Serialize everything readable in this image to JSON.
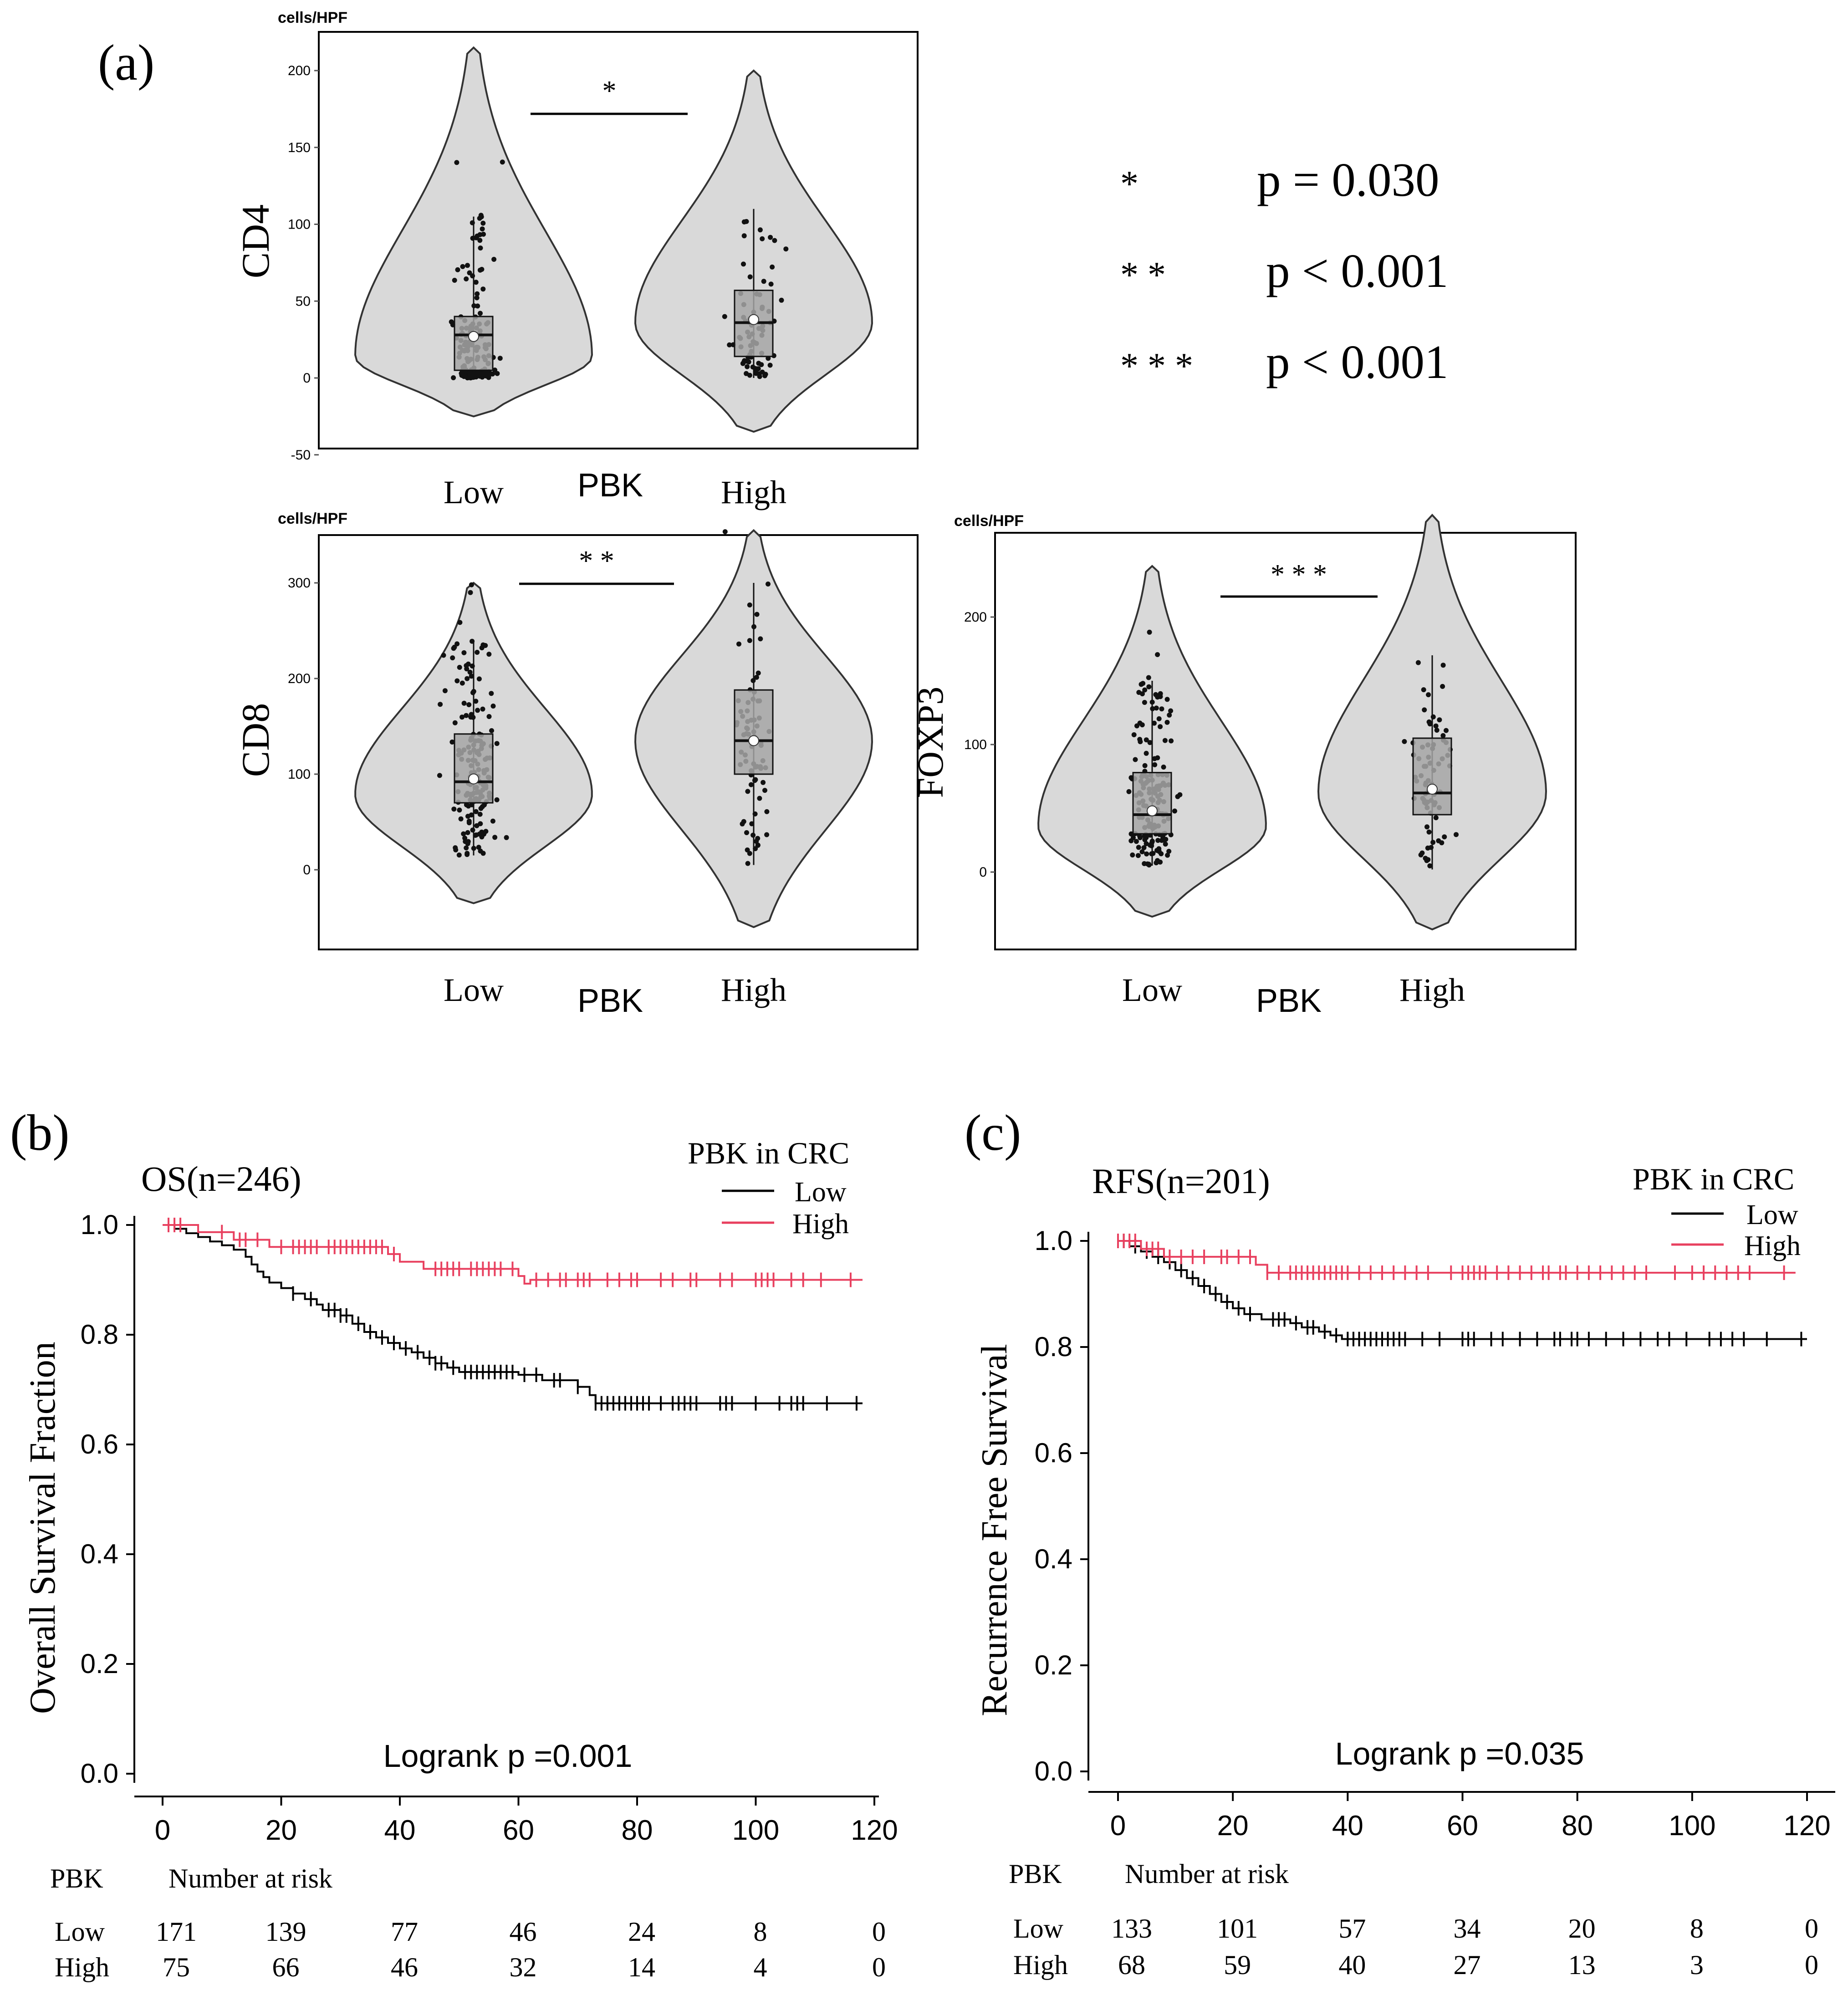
{
  "panel_labels": {
    "a": "(a)",
    "b": "(b)",
    "c": "(c)"
  },
  "legend_p": [
    {
      "stars": "*",
      "text": "p = 0.030"
    },
    {
      "stars": "* *",
      "text": "p < 0.001"
    },
    {
      "stars": "* * *",
      "text": "p < 0.001"
    }
  ],
  "colors": {
    "low": "#000000",
    "high": "#e8405f",
    "violin_fill": "#d9d9d9",
    "box_fill": "#a6a6a6"
  },
  "chart_data": [
    {
      "type": "violin",
      "id": "cd4",
      "ylabel": "CD4",
      "unit": "cells/HPF",
      "xlabel": "PBK",
      "categories": [
        "Low",
        "High"
      ],
      "yticks": [
        -50,
        0,
        50,
        100,
        150,
        200
      ],
      "ylim": [
        -50,
        220
      ],
      "significance": "*",
      "groups": [
        {
          "name": "Low",
          "min": 0,
          "q1": 5,
          "median": 28,
          "q3": 40,
          "max": 105,
          "mean": 27,
          "n": 171,
          "violin_range": [
            -25,
            215
          ]
        },
        {
          "name": "High",
          "min": 0,
          "q1": 14,
          "median": 36,
          "q3": 57,
          "max": 110,
          "mean": 38,
          "n": 75,
          "violin_range": [
            -35,
            200
          ]
        }
      ]
    },
    {
      "type": "violin",
      "id": "cd8",
      "ylabel": "CD8",
      "unit": "cells/HPF",
      "xlabel": "PBK",
      "categories": [
        "Low",
        "High"
      ],
      "yticks": [
        0,
        100,
        200,
        300
      ],
      "ylim": [
        -70,
        345
      ],
      "significance": "* *",
      "groups": [
        {
          "name": "Low",
          "min": 15,
          "q1": 70,
          "median": 92,
          "q3": 142,
          "max": 240,
          "mean": 95,
          "n": 171,
          "violin_range": [
            -35,
            300
          ]
        },
        {
          "name": "High",
          "min": 5,
          "q1": 100,
          "median": 135,
          "q3": 188,
          "max": 300,
          "mean": 135,
          "n": 75,
          "violin_range": [
            -60,
            355
          ]
        }
      ]
    },
    {
      "type": "violin",
      "id": "foxp3",
      "ylabel": "FOXP3",
      "unit": "cells/HPF",
      "xlabel": "PBK",
      "categories": [
        "Low",
        "High"
      ],
      "yticks": [
        0,
        100,
        200
      ],
      "ylim": [
        -60,
        255
      ],
      "significance": "* * *",
      "groups": [
        {
          "name": "Low",
          "min": 5,
          "q1": 30,
          "median": 45,
          "q3": 78,
          "max": 150,
          "mean": 48,
          "n": 171,
          "violin_range": [
            -35,
            240
          ]
        },
        {
          "name": "High",
          "min": 2,
          "q1": 45,
          "median": 62,
          "q3": 105,
          "max": 170,
          "mean": 65,
          "n": 75,
          "violin_range": [
            -45,
            280
          ]
        }
      ]
    },
    {
      "type": "line",
      "id": "os",
      "title": "OS(n=246)",
      "ylabel": "Overall Survival Fraction",
      "xlabel": "",
      "xlim": [
        -5,
        120
      ],
      "ylim": [
        0,
        1.0
      ],
      "xticks": [
        0,
        20,
        40,
        60,
        80,
        100,
        120
      ],
      "yticks": [
        0.0,
        0.2,
        0.4,
        0.6,
        0.8,
        1.0
      ],
      "legend_title": "PBK in CRC",
      "logrank": "Logrank p =0.001",
      "risk_table": {
        "group_header": "PBK",
        "header": "Number at risk",
        "rows": [
          {
            "name": "Low",
            "values": [
              171,
              139,
              77,
              46,
              24,
              8,
              0
            ]
          },
          {
            "name": "High",
            "values": [
              75,
              66,
              46,
              32,
              14,
              4,
              0
            ]
          }
        ]
      },
      "series": [
        {
          "name": "Low",
          "color": "#000000",
          "steps": [
            [
              0,
              1.0
            ],
            [
              2,
              0.993
            ],
            [
              4,
              0.985
            ],
            [
              6,
              0.978
            ],
            [
              8,
              0.97
            ],
            [
              10,
              0.963
            ],
            [
              12,
              0.955
            ],
            [
              14,
              0.942
            ],
            [
              15,
              0.928
            ],
            [
              16,
              0.915
            ],
            [
              17,
              0.905
            ],
            [
              18,
              0.895
            ],
            [
              20,
              0.885
            ],
            [
              22,
              0.875
            ],
            [
              24,
              0.865
            ],
            [
              26,
              0.855
            ],
            [
              27,
              0.845
            ],
            [
              30,
              0.835
            ],
            [
              32,
              0.82
            ],
            [
              34,
              0.805
            ],
            [
              36,
              0.795
            ],
            [
              38,
              0.785
            ],
            [
              40,
              0.775
            ],
            [
              42,
              0.768
            ],
            [
              44,
              0.758
            ],
            [
              46,
              0.748
            ],
            [
              48,
              0.74
            ],
            [
              50,
              0.732
            ],
            [
              60,
              0.727
            ],
            [
              64,
              0.717
            ],
            [
              70,
              0.705
            ],
            [
              72,
              0.69
            ],
            [
              73,
              0.675
            ],
            [
              118,
              0.675
            ]
          ],
          "censors": [
            22,
            25,
            28,
            29,
            30,
            31,
            33,
            35,
            37,
            39,
            41,
            43,
            45,
            46,
            47,
            49,
            51,
            52,
            53,
            54,
            55,
            56,
            57,
            58,
            59,
            61,
            63,
            66,
            67,
            70,
            73,
            74,
            75,
            76,
            77,
            78,
            79,
            80,
            81,
            82,
            84,
            86,
            87,
            88,
            89,
            90,
            94,
            95,
            96,
            100,
            104,
            106,
            107,
            108,
            112,
            117
          ]
        },
        {
          "name": "High",
          "color": "#e8405f",
          "steps": [
            [
              0,
              1.0
            ],
            [
              6,
              0.987
            ],
            [
              12,
              0.973
            ],
            [
              18,
              0.96
            ],
            [
              38,
              0.947
            ],
            [
              40,
              0.933
            ],
            [
              44,
              0.92
            ],
            [
              60,
              0.907
            ],
            [
              61,
              0.893
            ],
            [
              62,
              0.9
            ],
            [
              118,
              0.9
            ]
          ],
          "censors": [
            1,
            2,
            3,
            10,
            13,
            14,
            16,
            20,
            22,
            23,
            24,
            25,
            26,
            28,
            29,
            30,
            31,
            32,
            33,
            34,
            35,
            36,
            37,
            39,
            46,
            47,
            48,
            49,
            50,
            52,
            53,
            54,
            55,
            56,
            57,
            59,
            63,
            65,
            67,
            68,
            70,
            71,
            72,
            75,
            77,
            79,
            80,
            84,
            86,
            89,
            90,
            94,
            96,
            100,
            101,
            102,
            103,
            106,
            108,
            111,
            116
          ]
        }
      ]
    },
    {
      "type": "line",
      "id": "rfs",
      "title": "RFS(n=201)",
      "ylabel": "Recurrence Free Survival",
      "xlabel": "",
      "xlim": [
        -5,
        120
      ],
      "ylim": [
        0,
        1.0
      ],
      "xticks": [
        0,
        20,
        40,
        60,
        80,
        100,
        120
      ],
      "yticks": [
        0.0,
        0.2,
        0.4,
        0.6,
        0.8,
        1.0
      ],
      "legend_title": "PBK in CRC",
      "logrank": "Logrank p =0.035",
      "risk_table": {
        "group_header": "PBK",
        "header": "Number at risk",
        "rows": [
          {
            "name": "Low",
            "values": [
              133,
              101,
              57,
              34,
              20,
              8,
              0
            ]
          },
          {
            "name": "High",
            "values": [
              68,
              59,
              40,
              27,
              13,
              3,
              0
            ]
          }
        ]
      },
      "series": [
        {
          "name": "Low",
          "color": "#000000",
          "steps": [
            [
              0,
              1.0
            ],
            [
              2,
              0.99
            ],
            [
              4,
              0.98
            ],
            [
              6,
              0.97
            ],
            [
              8,
              0.96
            ],
            [
              10,
              0.945
            ],
            [
              12,
              0.93
            ],
            [
              14,
              0.915
            ],
            [
              16,
              0.9
            ],
            [
              18,
              0.885
            ],
            [
              20,
              0.873
            ],
            [
              22,
              0.862
            ],
            [
              25,
              0.852
            ],
            [
              30,
              0.845
            ],
            [
              32,
              0.837
            ],
            [
              35,
              0.829
            ],
            [
              37,
              0.822
            ],
            [
              39,
              0.815
            ],
            [
              120,
              0.815
            ]
          ],
          "censors": [
            1,
            3,
            5,
            7,
            9,
            11,
            13,
            15,
            17,
            19,
            21,
            23,
            27,
            28,
            29,
            31,
            33,
            34,
            36,
            38,
            40,
            41,
            42,
            43,
            44,
            45,
            46,
            47,
            48,
            49,
            50,
            53,
            56,
            60,
            61,
            62,
            65,
            67,
            70,
            73,
            76,
            77,
            79,
            80,
            82,
            85,
            88,
            91,
            94,
            96,
            99,
            103,
            105,
            107,
            109,
            113,
            119
          ]
        },
        {
          "name": "High",
          "color": "#e8405f",
          "steps": [
            [
              0,
              1.0
            ],
            [
              4,
              0.985
            ],
            [
              8,
              0.97
            ],
            [
              24,
              0.955
            ],
            [
              26,
              0.94
            ],
            [
              118,
              0.94
            ]
          ],
          "censors": [
            0,
            1,
            2,
            3,
            5,
            6,
            7,
            9,
            11,
            13,
            15,
            18,
            19,
            21,
            23,
            26,
            28,
            30,
            31,
            32,
            33,
            34,
            35,
            36,
            37,
            38,
            39,
            40,
            42,
            44,
            46,
            48,
            50,
            52,
            54,
            58,
            60,
            61,
            62,
            63,
            64,
            66,
            68,
            70,
            72,
            74,
            75,
            77,
            78,
            80,
            82,
            84,
            86,
            88,
            90,
            92,
            97,
            100,
            102,
            104,
            106,
            108,
            110,
            116
          ]
        }
      ]
    }
  ]
}
